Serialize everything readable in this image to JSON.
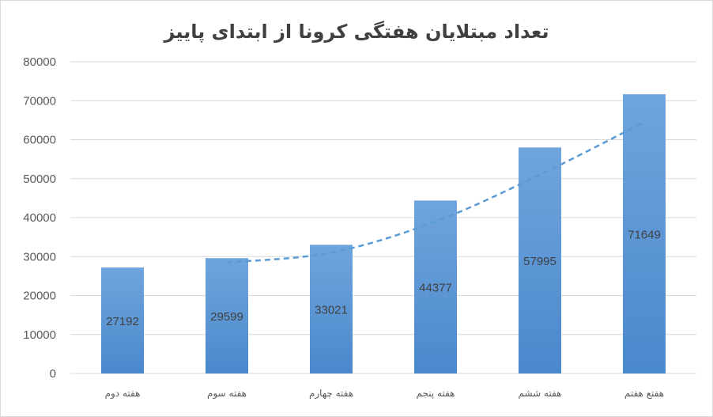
{
  "chart_data": {
    "type": "bar",
    "title": "تعداد مبتلایان هفتگی کرونا از ابتدای پاییز",
    "categories": [
      "هفته دوم",
      "هفته سوم",
      "هفته چهارم",
      "هفته پنجم",
      "هفته ششم",
      "هفتع هفتم"
    ],
    "values": [
      27192,
      29599,
      33021,
      44377,
      57995,
      71649
    ],
    "data_labels": [
      "27192",
      "29599",
      "33021",
      "44377",
      "57995",
      "71649"
    ],
    "ylim": [
      0,
      80000
    ],
    "yticks": [
      0,
      10000,
      20000,
      30000,
      40000,
      50000,
      60000,
      70000,
      80000
    ],
    "ytick_labels": [
      "0",
      "10000",
      "20000",
      "30000",
      "40000",
      "50000",
      "60000",
      "70000",
      "80000"
    ],
    "grid": true,
    "legend": "none",
    "trendline": {
      "style": "dashed",
      "x_categories": [
        "هفته سوم",
        "هفته چهارم",
        "هفته پنجم",
        "هفته ششم",
        "هفتع هفتم"
      ],
      "values": [
        28500,
        31000,
        39000,
        51000,
        64500
      ]
    },
    "colors": {
      "bar_top": "#6fa5dd",
      "bar_bottom": "#4a88cc",
      "trendline": "#5b9bd5",
      "grid": "#d9d9d9",
      "text": "#595959"
    }
  }
}
